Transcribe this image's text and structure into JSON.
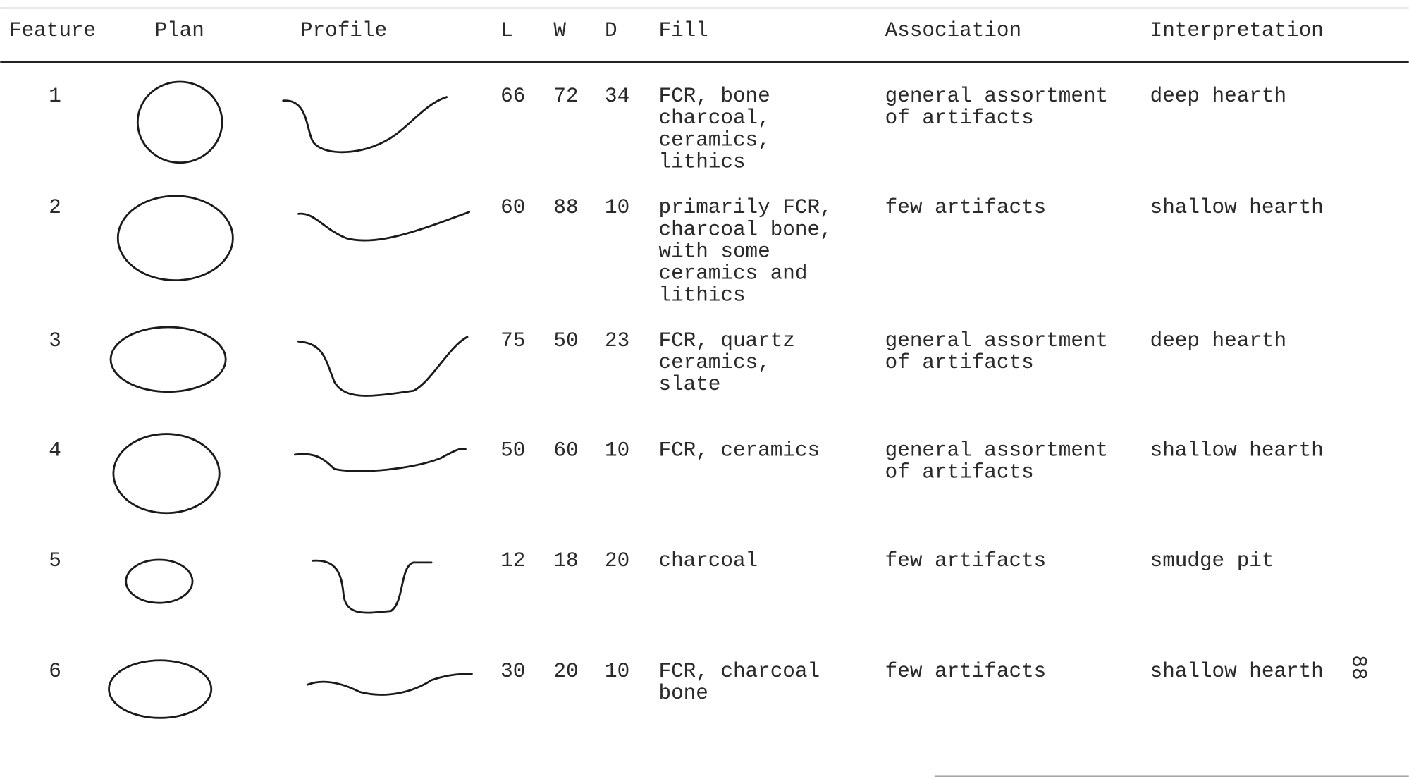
{
  "table": {
    "headers": [
      "Feature",
      "Plan",
      "Profile",
      "L",
      "W",
      "D",
      "Fill",
      "Association",
      "Interpretation"
    ],
    "rows": [
      {
        "feature": 1,
        "L": 66,
        "W": 72,
        "D": 34,
        "fill": [
          "FCR, bone",
          "charcoal,",
          "ceramics,",
          "lithics"
        ],
        "association": [
          "general assortment",
          "of artifacts"
        ],
        "interpretation": "deep hearth"
      },
      {
        "feature": 2,
        "L": 60,
        "W": 88,
        "D": 10,
        "fill": [
          "primarily FCR,",
          "charcoal bone,",
          "with some",
          "ceramics and",
          "lithics"
        ],
        "association": [
          "few artifacts"
        ],
        "interpretation": "shallow hearth"
      },
      {
        "feature": 3,
        "L": 75,
        "W": 50,
        "D": 23,
        "fill": [
          "FCR, quartz",
          "ceramics,",
          "slate"
        ],
        "association": [
          "general assortment",
          "of artifacts"
        ],
        "interpretation": "deep hearth"
      },
      {
        "feature": 4,
        "L": 50,
        "W": 60,
        "D": 10,
        "fill": [
          "FCR, ceramics"
        ],
        "association": [
          "general assortment",
          "of artifacts"
        ],
        "interpretation": "shallow hearth"
      },
      {
        "feature": 5,
        "L": 12,
        "W": 18,
        "D": 20,
        "fill": [
          "charcoal"
        ],
        "association": [
          "few artifacts"
        ],
        "interpretation": "smudge pit"
      },
      {
        "feature": 6,
        "L": 30,
        "W": 20,
        "D": 10,
        "fill": [
          "FCR, charcoal",
          "bone"
        ],
        "association": [
          "few artifacts"
        ],
        "interpretation": "shallow hearth"
      }
    ]
  },
  "page_number": "88"
}
